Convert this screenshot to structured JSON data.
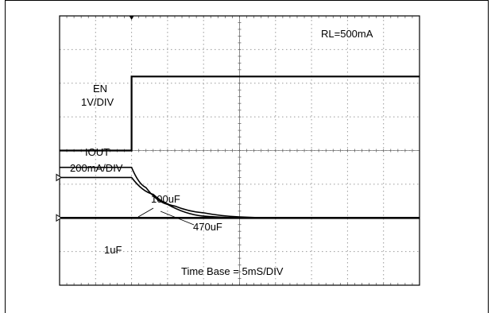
{
  "chart_data": {
    "type": "line",
    "title": "",
    "grid": true,
    "divisions": {
      "x": 10,
      "y": 8
    },
    "time_base": "Time Base = 5mS/DIV",
    "annotations": {
      "load": "RL=500mA",
      "en_name": "EN",
      "en_scale": "1V/DIV",
      "iout_name": "IOUT",
      "iout_scale": "200mA/DIV",
      "cap_100uf": "100uF",
      "cap_470uf": "470uF",
      "cap_1uf": "1uF"
    },
    "x_unit": "ms",
    "series": [
      {
        "name": "EN",
        "x": [
          0,
          10,
          10,
          50
        ],
        "y_div": [
          0,
          0,
          2.2,
          2.2
        ]
      },
      {
        "name": "IOUT (100uF)",
        "x": [
          0,
          10,
          12,
          15,
          20,
          25,
          50
        ],
        "y_div": [
          -0.5,
          -0.5,
          -1.1,
          -1.6,
          -1.95,
          -2.0,
          -2.0
        ]
      },
      {
        "name": "IOUT (470uF)",
        "x": [
          0,
          10,
          13,
          16,
          20,
          25,
          30,
          40,
          50
        ],
        "y_div": [
          -0.8,
          -0.8,
          -1.3,
          -1.65,
          -1.85,
          -1.97,
          -2.0,
          -2.0,
          -2.0
        ]
      },
      {
        "name": "IOUT (1uF)",
        "x": [
          0,
          10,
          11,
          12,
          50
        ],
        "y_div": [
          -2.0,
          -2.0,
          -2.0,
          -2.0,
          -2.0
        ]
      }
    ]
  }
}
